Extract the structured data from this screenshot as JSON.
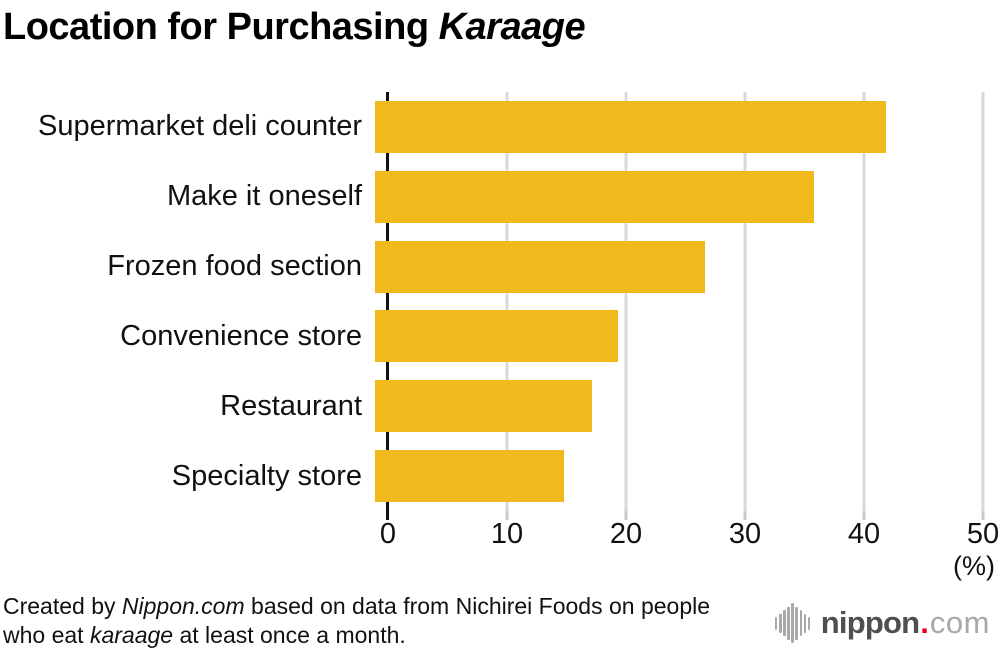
{
  "title": {
    "main": "Location for Purchasing ",
    "emphasis": "Karaage"
  },
  "chart_data": {
    "type": "bar",
    "orientation": "horizontal",
    "title": "Location for Purchasing Karaage",
    "categories": [
      "Supermarket deli counter",
      "Make it oneself",
      "Frozen food section",
      "Convenience store",
      "Restaurant",
      "Specialty store"
    ],
    "values": [
      42.9,
      36.9,
      27.7,
      20.4,
      18.2,
      15.9
    ],
    "xlim": [
      0,
      50
    ],
    "xticks": [
      0,
      10,
      20,
      30,
      40,
      50
    ],
    "x_unit_label": "(%)",
    "xlabel": "",
    "ylabel": "",
    "grid": true,
    "bar_color": "#F0B91C",
    "gridline_color": "#d8d8d8",
    "axis_color": "#111111"
  },
  "footer": {
    "parts": [
      {
        "text": "Created by ",
        "italic": false
      },
      {
        "text": "Nippon.com",
        "italic": true
      },
      {
        "text": " based on data from Nichirei Foods on people who eat ",
        "italic": false
      },
      {
        "text": "karaage",
        "italic": true
      },
      {
        "text": " at least once a month.",
        "italic": false
      }
    ]
  },
  "logo": {
    "name": "nippon",
    "dot": ".",
    "tld": "com",
    "icon": "soundwave-icon",
    "icon_bar_heights": [
      13,
      19,
      26,
      33,
      40,
      33,
      26,
      19,
      13
    ],
    "colors": {
      "name": "#4f4f4f",
      "dot": "#e60012",
      "tld": "#a8a8a8"
    }
  }
}
